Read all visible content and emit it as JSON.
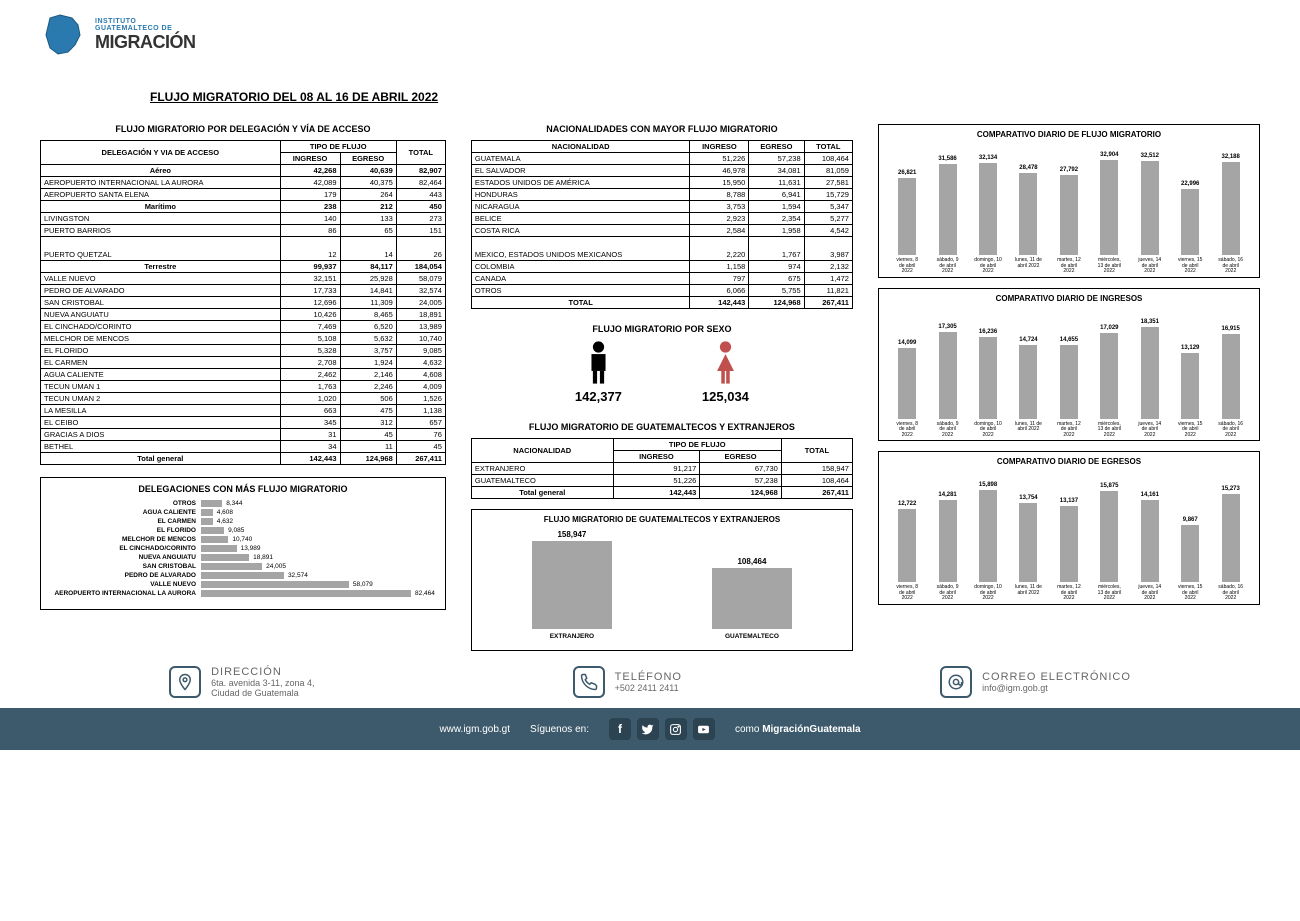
{
  "logo": {
    "line1": "INSTITUTO",
    "line2": "GUATEMALTECO DE",
    "line3": "MIGRACIÓN"
  },
  "title": "FLUJO MIGRATORIO DEL 08 AL 16 DE ABRIL 2022",
  "colors": {
    "bar_gray": "#a5a5a5",
    "female": "#c0504d",
    "male": "#000000",
    "footer": "#3d5a6c"
  },
  "table1": {
    "title": "FLUJO MIGRATORIO POR DELEGACIÓN Y VÍA DE ACCESO",
    "header": {
      "c1": "DELEGACIÓN Y VIA DE ACCESO",
      "c2": "TIPO DE FLUJO",
      "c3": "TOTAL",
      "c2a": "INGRESO",
      "c2b": "EGRESO"
    },
    "rows": [
      {
        "section": true,
        "label": "Aéreo",
        "ingreso": "42,268",
        "egreso": "40,639",
        "total": "82,907"
      },
      {
        "label": "AEROPUERTO INTERNACIONAL LA AURORA",
        "ingreso": "42,089",
        "egreso": "40,375",
        "total": "82,464"
      },
      {
        "label": "AEROPUERTO SANTA ELENA",
        "ingreso": "179",
        "egreso": "264",
        "total": "443"
      },
      {
        "section": true,
        "label": "Marítimo",
        "ingreso": "238",
        "egreso": "212",
        "total": "450"
      },
      {
        "label": "LIVINGSTON",
        "ingreso": "140",
        "egreso": "133",
        "total": "273"
      },
      {
        "label": "PUERTO BARRIOS",
        "ingreso": "86",
        "egreso": "65",
        "total": "151"
      },
      {
        "label": "PUERTO QUETZAL",
        "tall": true,
        "ingreso": "12",
        "egreso": "14",
        "total": "26"
      },
      {
        "section": true,
        "label": "Terrestre",
        "ingreso": "99,937",
        "egreso": "84,117",
        "total": "184,054"
      },
      {
        "label": "VALLE NUEVO",
        "ingreso": "32,151",
        "egreso": "25,928",
        "total": "58,079"
      },
      {
        "label": "PEDRO DE ALVARADO",
        "ingreso": "17,733",
        "egreso": "14,841",
        "total": "32,574"
      },
      {
        "label": "SAN CRISTOBAL",
        "ingreso": "12,696",
        "egreso": "11,309",
        "total": "24,005"
      },
      {
        "label": "NUEVA ANGUIATU",
        "ingreso": "10,426",
        "egreso": "8,465",
        "total": "18,891"
      },
      {
        "label": "EL CINCHADO/CORINTO",
        "ingreso": "7,469",
        "egreso": "6,520",
        "total": "13,989"
      },
      {
        "label": "MELCHOR DE MENCOS",
        "ingreso": "5,108",
        "egreso": "5,632",
        "total": "10,740"
      },
      {
        "label": "EL FLORIDO",
        "ingreso": "5,328",
        "egreso": "3,757",
        "total": "9,085"
      },
      {
        "label": "EL CARMEN",
        "ingreso": "2,708",
        "egreso": "1,924",
        "total": "4,632"
      },
      {
        "label": "AGUA CALIENTE",
        "ingreso": "2,462",
        "egreso": "2,146",
        "total": "4,608"
      },
      {
        "label": "TECUN UMAN 1",
        "ingreso": "1,763",
        "egreso": "2,246",
        "total": "4,009"
      },
      {
        "label": "TECUN UMAN 2",
        "ingreso": "1,020",
        "egreso": "506",
        "total": "1,526"
      },
      {
        "label": "LA MESILLA",
        "ingreso": "663",
        "egreso": "475",
        "total": "1,138"
      },
      {
        "label": "EL CEIBO",
        "ingreso": "345",
        "egreso": "312",
        "total": "657"
      },
      {
        "label": "GRACIAS A DIOS",
        "ingreso": "31",
        "egreso": "45",
        "total": "76"
      },
      {
        "label": "BETHEL",
        "ingreso": "34",
        "egreso": "11",
        "total": "45"
      }
    ],
    "total": {
      "label": "Total general",
      "ingreso": "142,443",
      "egreso": "124,968",
      "total": "267,411"
    }
  },
  "hbar": {
    "title": "DELEGACIONES CON MÁS FLUJO MIGRATORIO",
    "max": 82464,
    "bar_color": "#a5a5a5",
    "rows": [
      {
        "label": "OTROS",
        "value": 8344,
        "display": "8,344"
      },
      {
        "label": "AGUA CALIENTE",
        "value": 4608,
        "display": "4,608"
      },
      {
        "label": "EL CARMEN",
        "value": 4632,
        "display": "4,632"
      },
      {
        "label": "EL FLORIDO",
        "value": 9085,
        "display": "9,085"
      },
      {
        "label": "MELCHOR DE MENCOS",
        "value": 10740,
        "display": "10,740"
      },
      {
        "label": "EL CINCHADO/CORINTO",
        "value": 13989,
        "display": "13,989"
      },
      {
        "label": "NUEVA ANGUIATU",
        "value": 18891,
        "display": "18,891"
      },
      {
        "label": "SAN CRISTOBAL",
        "value": 24005,
        "display": "24,005"
      },
      {
        "label": "PEDRO DE ALVARADO",
        "value": 32574,
        "display": "32,574"
      },
      {
        "label": "VALLE NUEVO",
        "value": 58079,
        "display": "58,079"
      },
      {
        "label": "AEROPUERTO INTERNACIONAL LA AURORA",
        "value": 82464,
        "display": "82,464"
      }
    ]
  },
  "table2": {
    "title": "NACIONALIDADES CON MAYOR FLUJO MIGRATORIO",
    "header": {
      "c1": "NACIONALIDAD",
      "c2": "INGRESO",
      "c3": "EGRESO",
      "c4": "TOTAL"
    },
    "rows": [
      {
        "label": "GUATEMALA",
        "ingreso": "51,226",
        "egreso": "57,238",
        "total": "108,464"
      },
      {
        "label": "EL SALVADOR",
        "ingreso": "46,978",
        "egreso": "34,081",
        "total": "81,059"
      },
      {
        "label": "ESTADOS UNIDOS DE AMÉRICA",
        "ingreso": "15,950",
        "egreso": "11,631",
        "total": "27,581"
      },
      {
        "label": "HONDURAS",
        "ingreso": "8,788",
        "egreso": "6,941",
        "total": "15,729"
      },
      {
        "label": "NICARAGUA",
        "ingreso": "3,753",
        "egreso": "1,594",
        "total": "5,347"
      },
      {
        "label": "BELICE",
        "ingreso": "2,923",
        "egreso": "2,354",
        "total": "5,277"
      },
      {
        "label": "COSTA RICA",
        "ingreso": "2,584",
        "egreso": "1,958",
        "total": "4,542"
      },
      {
        "label": "MEXICO, ESTADOS UNIDOS MEXICANOS",
        "tall": true,
        "ingreso": "2,220",
        "egreso": "1,767",
        "total": "3,987"
      },
      {
        "label": "COLOMBIA",
        "ingreso": "1,158",
        "egreso": "974",
        "total": "2,132"
      },
      {
        "label": "CANADA",
        "ingreso": "797",
        "egreso": "675",
        "total": "1,472"
      },
      {
        "label": "OTROS",
        "ingreso": "6,066",
        "egreso": "5,755",
        "total": "11,821"
      }
    ],
    "total": {
      "label": "TOTAL",
      "ingreso": "142,443",
      "egreso": "124,968",
      "total": "267,411"
    }
  },
  "sex": {
    "title": "FLUJO MIGRATORIO POR SEXO",
    "male": "142,377",
    "female": "125,034"
  },
  "table3": {
    "title": "FLUJO MIGRATORIO DE GUATEMALTECOS Y EXTRANJEROS",
    "header": {
      "c1": "NACIONALIDAD",
      "c2": "TIPO DE FLUJO",
      "c3": "TOTAL",
      "c2a": "INGRESO",
      "c2b": "EGRESO"
    },
    "rows": [
      {
        "label": "EXTRANJERO",
        "ingreso": "91,217",
        "egreso": "67,730",
        "total": "158,947"
      },
      {
        "label": "GUATEMALTECO",
        "ingreso": "51,226",
        "egreso": "57,238",
        "total": "108,464"
      }
    ],
    "total": {
      "label": "Total general",
      "ingreso": "142,443",
      "egreso": "124,968",
      "total": "267,411"
    }
  },
  "ext_chart": {
    "title": "FLUJO MIGRATORIO DE GUATEMALTECOS Y EXTRANJEROS",
    "bar_color": "#a5a5a5",
    "max": 158947,
    "items": [
      {
        "label": "EXTRANJERO",
        "value": 158947,
        "display": "158,947"
      },
      {
        "label": "GUATEMALTECO",
        "value": 108464,
        "display": "108,464"
      }
    ]
  },
  "vcharts": [
    {
      "title": "COMPARATIVO DIARIO DE FLUJO MIGRATORIO",
      "bar_color": "#a5a5a5",
      "max": 33000,
      "items": [
        {
          "value": 26821,
          "display": "26,821"
        },
        {
          "value": 31586,
          "display": "31,586"
        },
        {
          "value": 32134,
          "display": "32,134"
        },
        {
          "value": 28478,
          "display": "28,478"
        },
        {
          "value": 27792,
          "display": "27,792"
        },
        {
          "value": 32904,
          "display": "32,904"
        },
        {
          "value": 32512,
          "display": "32,512"
        },
        {
          "value": 22996,
          "display": "22,996"
        },
        {
          "value": 32188,
          "display": "32,188"
        }
      ]
    },
    {
      "title": "COMPARATIVO DIARIO DE INGRESOS",
      "bar_color": "#a5a5a5",
      "max": 19000,
      "items": [
        {
          "value": 14099,
          "display": "14,099"
        },
        {
          "value": 17305,
          "display": "17,305"
        },
        {
          "value": 16236,
          "display": "16,236"
        },
        {
          "value": 14724,
          "display": "14,724"
        },
        {
          "value": 14655,
          "display": "14,655"
        },
        {
          "value": 17029,
          "display": "17,029"
        },
        {
          "value": 18351,
          "display": "18,351"
        },
        {
          "value": 13129,
          "display": "13,129"
        },
        {
          "value": 16915,
          "display": "16,915"
        }
      ]
    },
    {
      "title": "COMPARATIVO DIARIO DE EGRESOS",
      "bar_color": "#a5a5a5",
      "max": 16500,
      "items": [
        {
          "value": 12722,
          "display": "12,722"
        },
        {
          "value": 14281,
          "display": "14,281"
        },
        {
          "value": 15898,
          "display": "15,898"
        },
        {
          "value": 13754,
          "display": "13,754"
        },
        {
          "value": 13137,
          "display": "13,137"
        },
        {
          "value": 15875,
          "display": "15,875"
        },
        {
          "value": 14161,
          "display": "14,161"
        },
        {
          "value": 9867,
          "display": "9,867"
        },
        {
          "value": 15273,
          "display": "15,273"
        }
      ]
    }
  ],
  "xlabels": [
    "viernes, 8 de abril 2022",
    "sábado, 9 de abril 2022",
    "domingo, 10 de abril 2022",
    "lunes, 11 de abril 2022",
    "martes, 12 de abril 2022",
    "miércoles, 13 de abril 2022",
    "jueves, 14 de abril 2022",
    "viernes, 15 de abril 2022",
    "sábado, 16 de abril 2022"
  ],
  "contacts": {
    "dir": {
      "heading": "DIRECCIÓN",
      "line1": "6ta. avenida 3-11, zona 4,",
      "line2": "Ciudad de Guatemala"
    },
    "tel": {
      "heading": "TELÉFONO",
      "line1": "+502 2411 2411"
    },
    "mail": {
      "heading": "CORREO ELECTRÓNICO",
      "line1": "info@igm.gob.gt"
    }
  },
  "footer": {
    "url": "www.igm.gob.gt",
    "follow": "Síguenos en:",
    "tag_pre": "como ",
    "tag_bold": "MigraciónGuatemala"
  }
}
